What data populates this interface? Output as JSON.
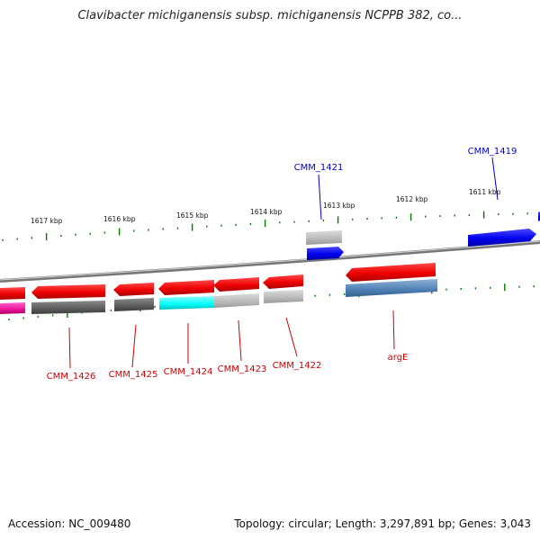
{
  "title": "Clavibacter michiganensis subsp. michiganensis NCPPB 382, co...",
  "footer": {
    "accession": "Accession: NC_009480",
    "topology": "Topology: circular; Length: 3,297,891 bp; Genes: 3,043"
  },
  "colors": {
    "forward_gene_label": "#0000cc",
    "reverse_gene_label": "#cc0000",
    "tick": "#007700",
    "backbone": "#888888"
  },
  "scale_labels": [
    "1617 kbp",
    "1616 kbp",
    "1615 kbp",
    "1614 kbp",
    "1613 kbp",
    "1612 kbp",
    "1611 kbp"
  ],
  "genes": [
    {
      "label": "CMM_1426",
      "strand": "reverse"
    },
    {
      "label": "CMM_1425",
      "strand": "reverse"
    },
    {
      "label": "CMM_1424",
      "strand": "reverse"
    },
    {
      "label": "CMM_1423",
      "strand": "reverse"
    },
    {
      "label": "CMM_1422",
      "strand": "reverse"
    },
    {
      "label": "argE",
      "strand": "reverse"
    },
    {
      "label": "CMM_1421",
      "strand": "forward"
    },
    {
      "label": "CMM_1419",
      "strand": "forward"
    }
  ]
}
